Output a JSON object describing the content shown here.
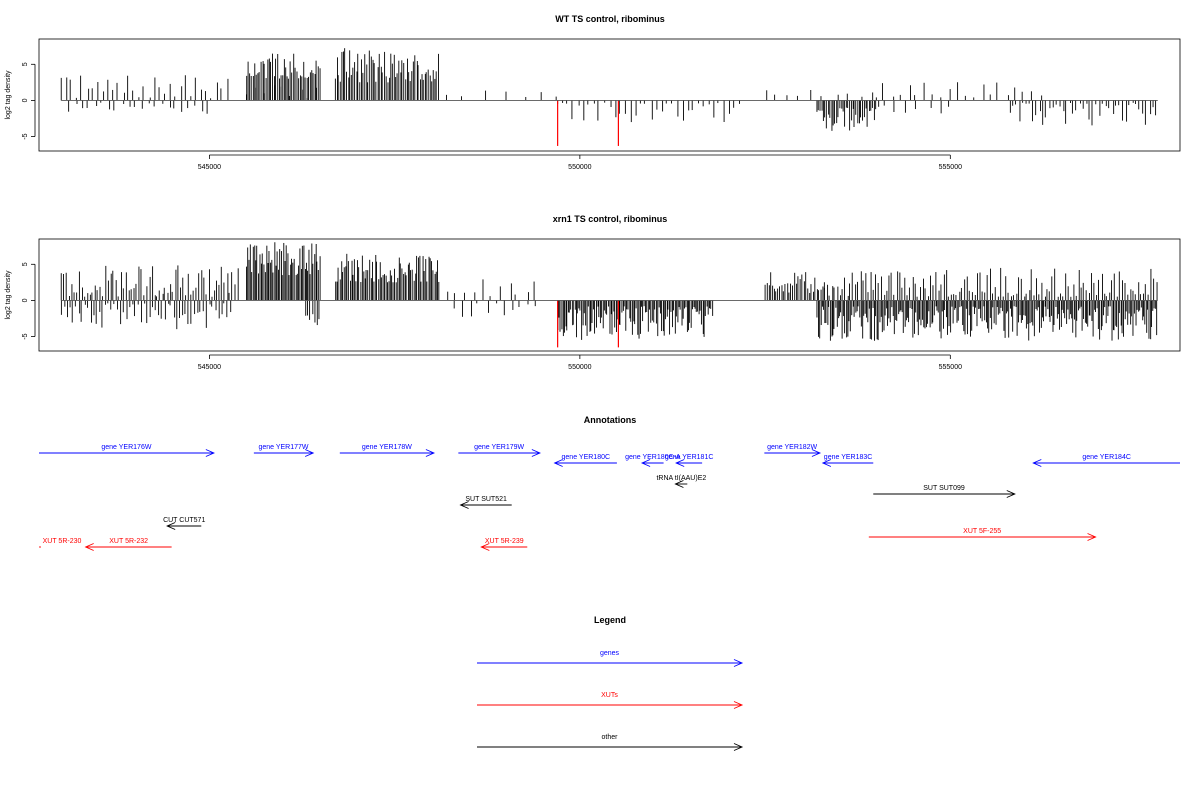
{
  "chart_data": [
    {
      "type": "bar",
      "title": "WT TS control, ribominus",
      "xlabel": "",
      "ylabel": "log2 tag density",
      "xlim": [
        542700,
        558100
      ],
      "ylim": [
        -7,
        8.5
      ],
      "xticks": [
        545000,
        550000,
        555000
      ],
      "xtick_labels": [
        "545000",
        "550000",
        "555000"
      ],
      "yticks": [
        -5,
        0,
        5
      ],
      "ytick_labels": [
        "-5",
        "0",
        "5"
      ],
      "baseline": {
        "x": [
          543000,
          557800
        ],
        "y": 0
      },
      "profile": {
        "plus_strand": [
          {
            "from": 543000,
            "to": 545300,
            "min": 0.3,
            "max": 3.5,
            "every": 70
          },
          {
            "from": 545500,
            "to": 546500,
            "min": 0.3,
            "max": 2.2,
            "every": 120
          },
          {
            "from": 545500,
            "to": 546500,
            "min": 3,
            "max": 6.5,
            "every": 22
          },
          {
            "from": 546700,
            "to": 548100,
            "min": 2.5,
            "max": 7.3,
            "every": 22
          },
          {
            "from": 548200,
            "to": 549700,
            "min": 0.4,
            "max": 1.6,
            "every": 250
          },
          {
            "from": 552500,
            "to": 554000,
            "min": 0.4,
            "max": 1.5,
            "every": 160
          },
          {
            "from": 554000,
            "to": 556300,
            "min": 0.4,
            "max": 2.6,
            "every": 110
          }
        ],
        "minus_strand": [
          {
            "from": 543100,
            "to": 545000,
            "min": 0.3,
            "max": 2.4,
            "every": 90
          },
          {
            "from": 549700,
            "to": 552200,
            "min": 0.3,
            "max": 3,
            "every": 70
          },
          {
            "from": 553200,
            "to": 554000,
            "min": 1,
            "max": 4.3,
            "every": 22
          },
          {
            "from": 554000,
            "to": 555000,
            "min": 0.3,
            "max": 2,
            "every": 140
          },
          {
            "from": 555800,
            "to": 557800,
            "min": 0.3,
            "max": 3.6,
            "every": 45
          }
        ],
        "highlight_bars": [
          {
            "x": 549700,
            "y": -6.3
          },
          {
            "x": 550520,
            "y": -6.3
          }
        ]
      },
      "line_color": "#000000",
      "highlight_color": "#ff0000",
      "grid": false
    },
    {
      "type": "bar",
      "title": "xrn1 TS control, ribominus",
      "xlabel": "",
      "ylabel": "log2 tag density",
      "xlim": [
        542700,
        558100
      ],
      "ylim": [
        -7,
        8.5
      ],
      "xticks": [
        545000,
        550000,
        555000
      ],
      "xtick_labels": [
        "545000",
        "550000",
        "555000"
      ],
      "yticks": [
        -5,
        0,
        5
      ],
      "ytick_labels": [
        "-5",
        "0",
        "5"
      ],
      "baseline": {
        "x": [
          543000,
          557800
        ],
        "y": 0
      },
      "profile": {
        "plus_strand": [
          {
            "from": 543000,
            "to": 545400,
            "min": 0.5,
            "max": 5,
            "every": 35
          },
          {
            "from": 545500,
            "to": 546500,
            "min": 3.5,
            "max": 8.2,
            "every": 18
          },
          {
            "from": 546700,
            "to": 548100,
            "min": 2.5,
            "max": 6.5,
            "every": 20
          },
          {
            "from": 548200,
            "to": 549500,
            "min": 0.5,
            "max": 3,
            "every": 120
          },
          {
            "from": 552500,
            "to": 553300,
            "min": 1,
            "max": 4,
            "every": 25
          },
          {
            "from": 553300,
            "to": 557800,
            "min": 0.5,
            "max": 4.5,
            "every": 35
          }
        ],
        "minus_strand": [
          {
            "from": 543000,
            "to": 545300,
            "min": 0.4,
            "max": 4,
            "every": 40
          },
          {
            "from": 546300,
            "to": 546500,
            "min": 1,
            "max": 4.6,
            "every": 30
          },
          {
            "from": 548300,
            "to": 549400,
            "min": 0.4,
            "max": 2.5,
            "every": 110
          },
          {
            "from": 549700,
            "to": 551800,
            "min": 0.8,
            "max": 5.5,
            "every": 18
          },
          {
            "from": 553200,
            "to": 557800,
            "min": 0.8,
            "max": 5.6,
            "every": 18
          }
        ],
        "highlight_bars": [
          {
            "x": 549700,
            "y": -6.5
          },
          {
            "x": 550520,
            "y": -6.5
          }
        ]
      },
      "line_color": "#000000",
      "highlight_color": "#ff0000",
      "grid": false
    },
    {
      "type": "annotation_track",
      "title": "Annotations",
      "xlim": [
        542700,
        558100
      ],
      "features": [
        {
          "label": "gene YER176W",
          "from": 542700,
          "to": 545060,
          "lane": 0,
          "strand": "+",
          "kind": "gene"
        },
        {
          "label": "gene YER177W",
          "from": 545600,
          "to": 546400,
          "lane": 0,
          "strand": "+",
          "kind": "gene"
        },
        {
          "label": "gene YER178W",
          "from": 546760,
          "to": 548030,
          "lane": 0,
          "strand": "+",
          "kind": "gene"
        },
        {
          "label": "gene YER179W",
          "from": 548360,
          "to": 549460,
          "lane": 0,
          "strand": "+",
          "kind": "gene"
        },
        {
          "label": "gene YER180C",
          "from": 549660,
          "to": 550500,
          "lane": 1,
          "strand": "-",
          "kind": "gene"
        },
        {
          "label": "gene YER180C-A",
          "from": 550840,
          "to": 551130,
          "lane": 1,
          "strand": "-",
          "kind": "gene"
        },
        {
          "label": "gene YER181C",
          "from": 551300,
          "to": 551650,
          "lane": 1,
          "strand": "-",
          "kind": "gene"
        },
        {
          "label": "gene YER182W",
          "from": 552490,
          "to": 553240,
          "lane": 0,
          "strand": "+",
          "kind": "gene"
        },
        {
          "label": "gene YER183C",
          "from": 553280,
          "to": 553960,
          "lane": 1,
          "strand": "-",
          "kind": "gene"
        },
        {
          "label": "gene YER184C",
          "from": 556120,
          "to": 558100,
          "lane": 1,
          "strand": "-",
          "kind": "gene"
        },
        {
          "label": "tRNA tI(AAU)E2",
          "from": 551290,
          "to": 551450,
          "lane": 2,
          "strand": "-",
          "kind": "other"
        },
        {
          "label": "SUT SUT521",
          "from": 548390,
          "to": 549080,
          "lane": 3,
          "strand": "-",
          "kind": "other"
        },
        {
          "label": "SUT SUT099",
          "from": 553960,
          "to": 555870,
          "lane": 4,
          "strand": "+",
          "kind": "other"
        },
        {
          "label": "CUT CUT571",
          "from": 544430,
          "to": 544890,
          "lane": 5,
          "strand": "-",
          "kind": "other"
        },
        {
          "label": "XUT 5R-230",
          "from": 542700,
          "to": 542710,
          "lane": 6,
          "strand": "-",
          "kind": "xut"
        },
        {
          "label": "XUT 5R-232",
          "from": 543330,
          "to": 544490,
          "lane": 6,
          "strand": "-",
          "kind": "xut"
        },
        {
          "label": "XUT 5R-239",
          "from": 548670,
          "to": 549290,
          "lane": 6,
          "strand": "-",
          "kind": "xut"
        },
        {
          "label": "XUT 5F-255",
          "from": 553900,
          "to": 556960,
          "lane": 7,
          "strand": "+",
          "kind": "xut"
        }
      ],
      "colors": {
        "gene": "#0000ff",
        "xut": "#ff0000",
        "other": "#000000"
      }
    },
    {
      "type": "legend",
      "title": "Legend",
      "entries": [
        {
          "label": "genes",
          "color": "#0000ff"
        },
        {
          "label": "XUTs",
          "color": "#ff0000"
        },
        {
          "label": "other",
          "color": "#000000"
        }
      ]
    }
  ]
}
